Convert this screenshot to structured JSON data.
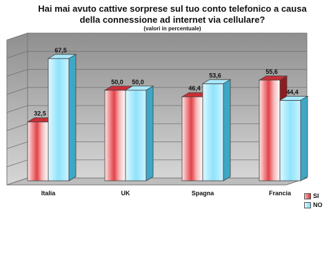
{
  "chart_data": {
    "type": "bar",
    "title": "Hai mai avuto cattive sorprese sul tuo conto telefonico a causa della connessione ad internet via cellulare?",
    "subtitle": "(valori in percentuale)",
    "categories": [
      "Italia",
      "UK",
      "Spagna",
      "Francia"
    ],
    "series": [
      {
        "name": "SI",
        "values": [
          32.5,
          50.0,
          46.4,
          55.6
        ],
        "labels": [
          "32,5",
          "50,0",
          "46,4",
          "55,6"
        ],
        "color": "#d9343a"
      },
      {
        "name": "NO",
        "values": [
          67.5,
          50.0,
          53.6,
          44.4
        ],
        "labels": [
          "67,5",
          "50,0",
          "53,6",
          "44,4"
        ],
        "color": "#7fdcf6"
      }
    ],
    "ylim": [
      0,
      80
    ],
    "grid": true,
    "legend_position": "bottom-right",
    "style": "3d"
  }
}
